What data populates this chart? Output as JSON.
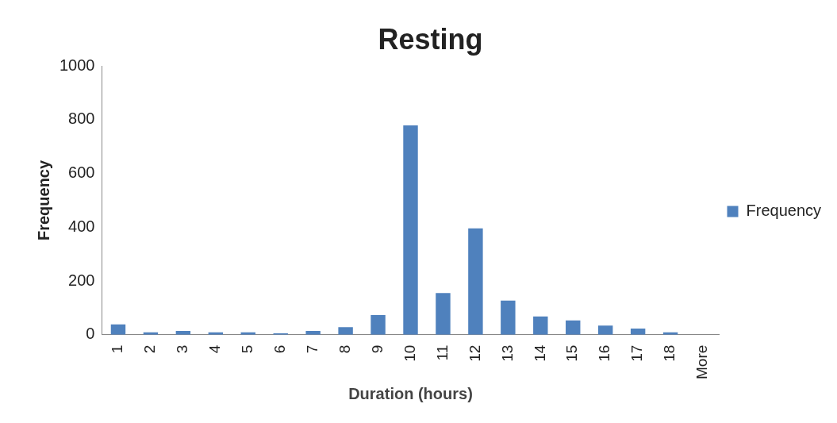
{
  "chart_data": {
    "type": "bar",
    "title": "Resting",
    "xlabel": "Duration (hours)",
    "ylabel": "Frequency",
    "categories": [
      "1",
      "2",
      "3",
      "4",
      "5",
      "6",
      "7",
      "8",
      "9",
      "10",
      "11",
      "12",
      "13",
      "14",
      "15",
      "16",
      "17",
      "18",
      "More"
    ],
    "series": [
      {
        "name": "Frequency",
        "color": "#4f81bd",
        "values": [
          38,
          9,
          14,
          9,
          9,
          5,
          14,
          28,
          73,
          779,
          155,
          396,
          127,
          68,
          53,
          34,
          23,
          9,
          0
        ]
      }
    ],
    "ylim": [
      0,
      1000
    ],
    "yticks": [
      0,
      200,
      400,
      600,
      800,
      1000
    ],
    "grid": false,
    "legend": "right"
  }
}
